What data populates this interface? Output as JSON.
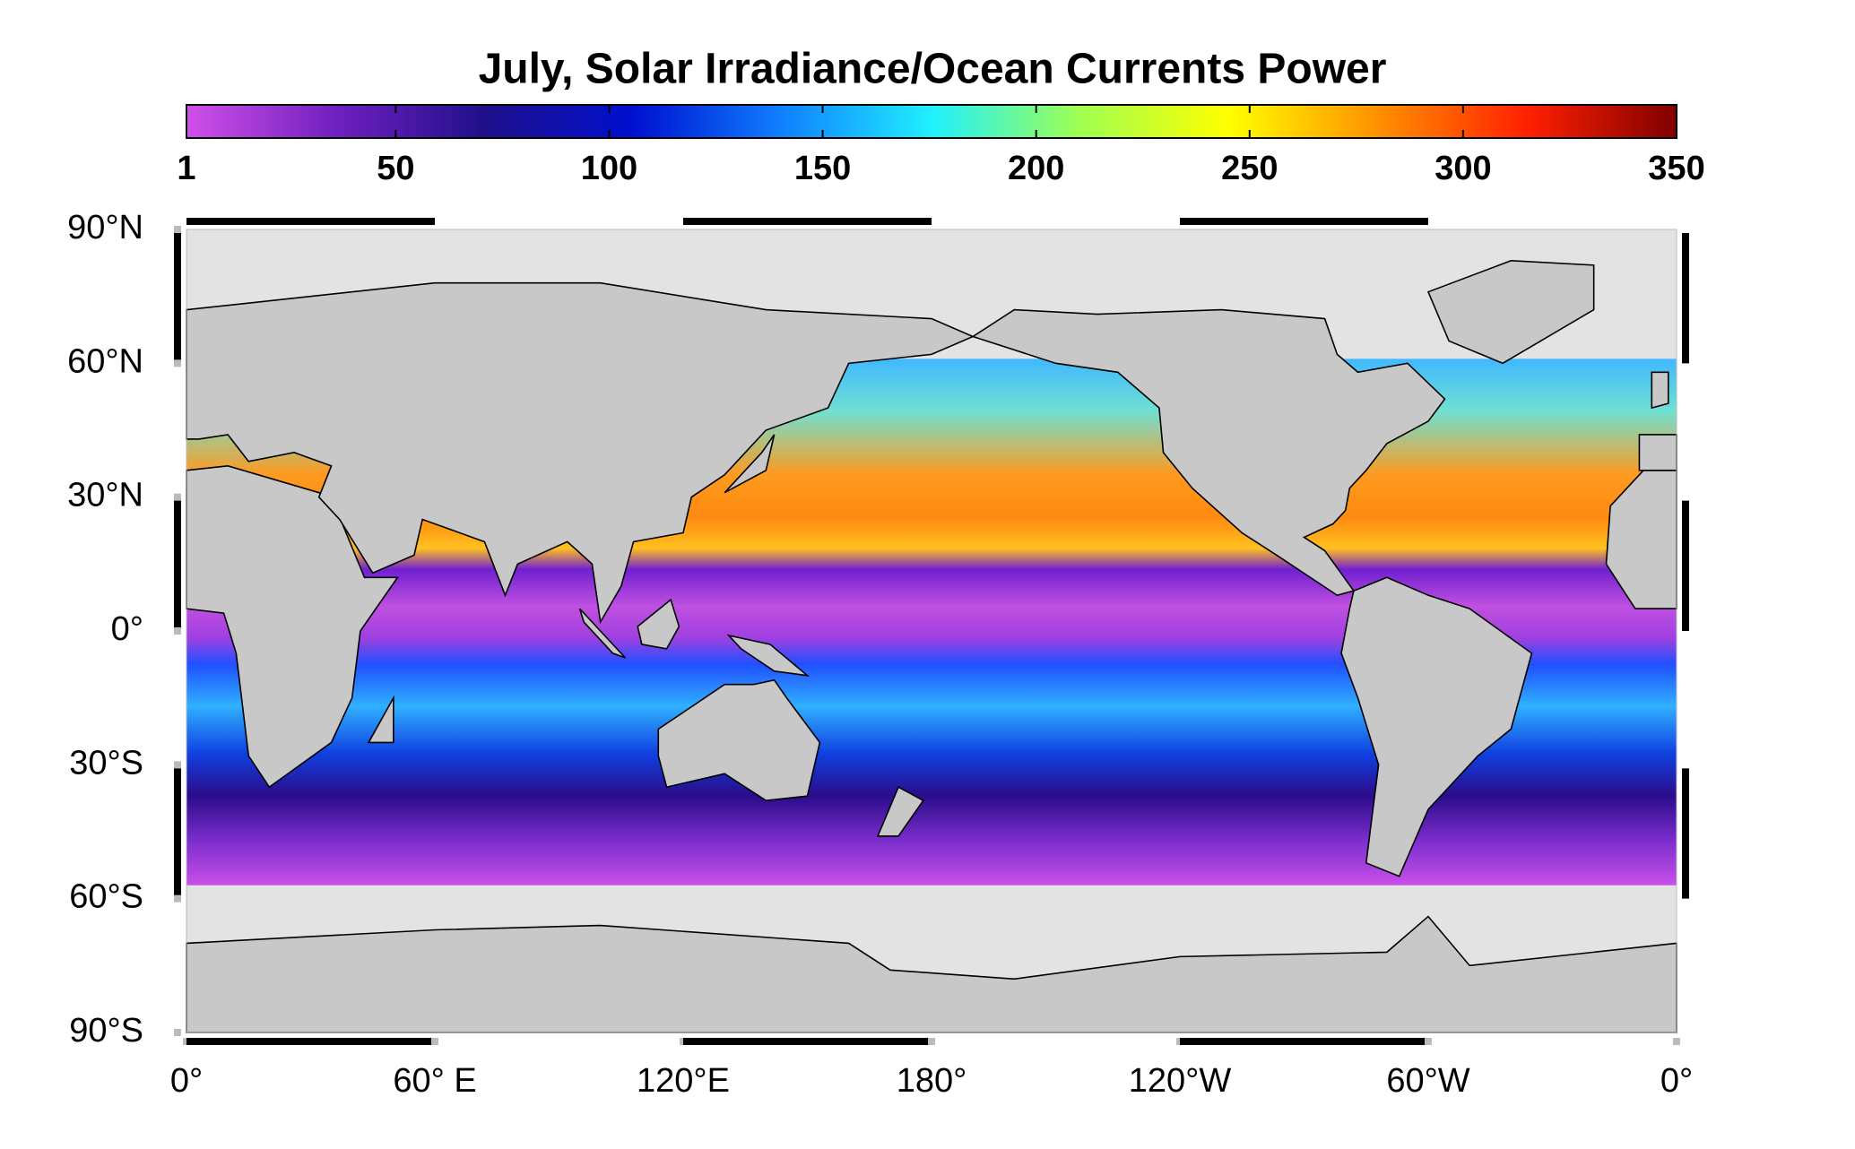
{
  "title": "July, Solar Irradiance/Ocean Currents Power",
  "colorbar": {
    "lim": [
      1,
      350
    ],
    "ticks": [
      1,
      50,
      100,
      150,
      200,
      250,
      300,
      350
    ],
    "colors": [
      "#d050e8",
      "#7020c0",
      "#20108a",
      "#0010d0",
      "#1080ff",
      "#20f0ff",
      "#a0ff50",
      "#ffff00",
      "#ff9000",
      "#ff2000",
      "#800000"
    ]
  },
  "map": {
    "lon_lim": [
      0,
      360
    ],
    "lat_lim": [
      -90,
      90
    ],
    "lon_ticks": [
      {
        "value": 0,
        "label": "0°"
      },
      {
        "value": 60,
        "label": "60° E"
      },
      {
        "value": 120,
        "label": "120°E"
      },
      {
        "value": 180,
        "label": "180°"
      },
      {
        "value": 240,
        "label": "120°W"
      },
      {
        "value": 300,
        "label": "60°W"
      },
      {
        "value": 360,
        "label": "0°"
      }
    ],
    "lat_ticks": [
      {
        "value": 90,
        "label": "90°N"
      },
      {
        "value": 60,
        "label": "60°N"
      },
      {
        "value": 30,
        "label": "30°N"
      },
      {
        "value": 0,
        "label": "0°"
      },
      {
        "value": -30,
        "label": "30°S"
      },
      {
        "value": -60,
        "label": "60°S"
      },
      {
        "value": -90,
        "label": "90°S"
      }
    ]
  }
}
